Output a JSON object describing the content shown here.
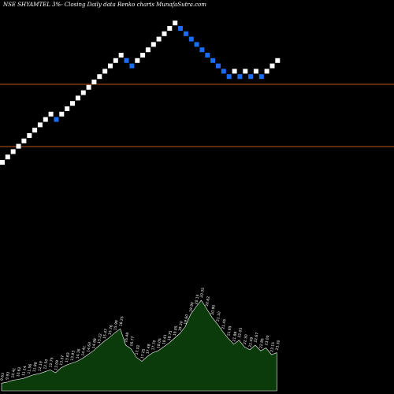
{
  "header": {
    "text": "NSE SHYAMTEL 3%-  Closing Daily data  Renko  charts MunafaSutra.com"
  },
  "colors": {
    "background": "#000000",
    "up_brick": "#ffffff",
    "down_brick": "#1a6cf2",
    "line_color": "#c0541e",
    "volume_fill": "#0b3a0b",
    "volume_stroke": "#ffffff",
    "volume_label": "#ffffff"
  },
  "chart_data": {
    "type": "renko",
    "brick_size_percent": 3,
    "bricks": [
      "up",
      "up",
      "up",
      "up",
      "up",
      "up",
      "up",
      "up",
      "up",
      "up",
      "down",
      "up",
      "up",
      "up",
      "up",
      "up",
      "up",
      "up",
      "up",
      "up",
      "up",
      "up",
      "up",
      "down",
      "down",
      "up",
      "up",
      "up",
      "up",
      "up",
      "up",
      "up",
      "up",
      "down",
      "down",
      "down",
      "down",
      "down",
      "down",
      "down",
      "down",
      "down",
      "down",
      "up",
      "down",
      "up",
      "down",
      "up",
      "down",
      "up",
      "up",
      "up"
    ],
    "horizontal_lines": [
      "upper",
      "lower"
    ],
    "volume_labels": [
      "9.63",
      "9.93",
      "10.41",
      "10.62",
      "11.14",
      "11.56",
      "11.88",
      "12.19",
      "12.50",
      "12.75",
      "13.09",
      "13.37",
      "13.63",
      "13.93",
      "14.16",
      "14.41",
      "14.63",
      "14.88",
      "15.22",
      "15.47",
      "15.76",
      "15.99",
      "16.25",
      "16.48",
      "16.77",
      "17.02",
      "17.25",
      "17.48",
      "17.70",
      "18.05",
      "18.41",
      "18.75",
      "19.05",
      "19.30",
      "19.60",
      "19.90",
      "20.15",
      "20.35",
      "20.62",
      "20.90",
      "21.10",
      "21.45",
      "21.65",
      "21.88",
      "22.05",
      "22.30",
      "22.49",
      "22.67",
      "22.85",
      "23.00",
      "23.15",
      "23.30"
    ],
    "volume_values": [
      8,
      9,
      11,
      12,
      13,
      15,
      17,
      18,
      20,
      22,
      19,
      24,
      27,
      29,
      31,
      34,
      38,
      42,
      47,
      52,
      56,
      61,
      65,
      48,
      44,
      35,
      31,
      36,
      40,
      42,
      46,
      50,
      55,
      60,
      67,
      80,
      88,
      95,
      86,
      77,
      70,
      62,
      55,
      49,
      53,
      46,
      43,
      48,
      42,
      45,
      38,
      40
    ]
  }
}
